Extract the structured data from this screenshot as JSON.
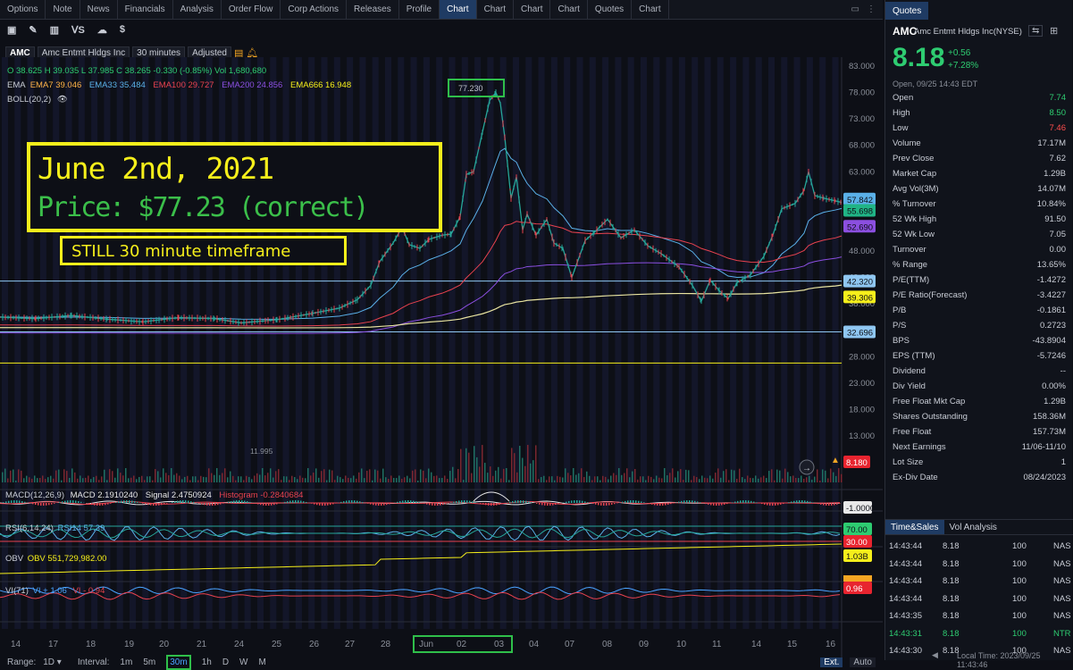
{
  "tabs": [
    "Options",
    "Note",
    "News",
    "Financials",
    "Analysis",
    "Order Flow",
    "Corp Actions",
    "Releases",
    "Profile",
    "Chart",
    "Chart",
    "Chart",
    "Chart",
    "Quotes",
    "Chart"
  ],
  "active_tab_index": 9,
  "symbol_row": {
    "symbol": "AMC",
    "name": "Amc Entmt Hldgs Inc",
    "interval": "30 minutes",
    "adjust": "Adjusted"
  },
  "ohlc": "O 38.625  H 39.035  L 37.985  C 38.265  -0.330 (-0.85%)  Vol 1,680,680",
  "ema": {
    "label": "EMA",
    "ema7": "EMA7 39.046",
    "ema33": "EMA33 35.484",
    "ema100": "EMA100 29.727",
    "ema200": "EMA200 24.856",
    "ema666": "EMA666 16.948"
  },
  "boll": "BOLL(20,2)",
  "annotation": {
    "date": "June 2nd, 2021",
    "price": "Price: $77.23 (correct)",
    "timeframe": "STILL 30 minute timeframe",
    "peak": "77.230"
  },
  "low_label": "11.995",
  "price_axis": [
    "83.000",
    "78.000",
    "73.000",
    "68.000",
    "63.000",
    "58.000",
    "53.000",
    "48.000",
    "43.000",
    "38.000",
    "33.000",
    "28.000",
    "23.000",
    "18.000",
    "13.000"
  ],
  "price_tags": [
    {
      "text": "57.842",
      "color": "#5ab0e8",
      "y": 57.842
    },
    {
      "text": "55.698",
      "color": "#20b486",
      "y": 55.698
    },
    {
      "text": "52.690",
      "color": "#8b4fe0",
      "y": 52.69
    },
    {
      "text": "42.320",
      "color": "#8fc7f2",
      "y": 42.32
    },
    {
      "text": "39.306",
      "color": "#f6ef1b",
      "y": 39.306
    },
    {
      "text": "32.696",
      "color": "#8fc7f2",
      "y": 32.696
    }
  ],
  "last_price_tag": "8.180",
  "hlines": [
    42.32,
    32.696,
    26.8
  ],
  "macd": {
    "label": "MACD(12,26,9)",
    "macd": "MACD 2.1910240",
    "signal": "Signal 2.4750924",
    "hist": "Histogram -0.2840684",
    "tag": "-1.0000"
  },
  "rsi": {
    "label": "RSI(6,14,24)",
    "rsi14": "RSI14 57.39",
    "t70": "70.00",
    "t30": "30.00"
  },
  "obv": {
    "label": "OBV",
    "value": "OBV 551,729,982.00",
    "tag": "1.03B"
  },
  "vi": {
    "label": "VI(71)",
    "plus": "VI + 1.06",
    "minus": "VI - 0.94",
    "tag": "0.96"
  },
  "x_labels": [
    "14",
    "17",
    "18",
    "19",
    "20",
    "21",
    "24",
    "25",
    "26",
    "27",
    "28",
    "Jun",
    "02",
    "03",
    "04",
    "07",
    "08",
    "09",
    "10",
    "11",
    "14",
    "15",
    "16"
  ],
  "range": {
    "label": "Range:",
    "value": "1D",
    "interval_label": "Interval:",
    "intervals": [
      "1m",
      "5m",
      "30m",
      "1h",
      "D",
      "W",
      "M"
    ],
    "selected": "30m",
    "ext": "Ext.",
    "auto": "Auto"
  },
  "quotes": {
    "tab": "Quotes",
    "symbol": "AMC",
    "name": "Amc Entmt Hldgs Inc(NYSE)",
    "price": "8.18",
    "change": "+0.56",
    "change_pct": "+7.28%",
    "time": "Open, 09/25 14:43 EDT",
    "rows": [
      {
        "k": "Open",
        "v": "7.74",
        "c": "g"
      },
      {
        "k": "High",
        "v": "8.50",
        "c": "g"
      },
      {
        "k": "Low",
        "v": "7.46",
        "c": "r"
      },
      {
        "k": "Volume",
        "v": "17.17M"
      },
      {
        "k": "Prev Close",
        "v": "7.62"
      },
      {
        "k": "Market Cap",
        "v": "1.29B"
      },
      {
        "k": "Avg Vol(3M)",
        "v": "14.07M"
      },
      {
        "k": "% Turnover",
        "v": "10.84%"
      },
      {
        "k": "52 Wk High",
        "v": "91.50"
      },
      {
        "k": "52 Wk Low",
        "v": "7.05"
      },
      {
        "k": "Turnover",
        "v": "0.00"
      },
      {
        "k": "% Range",
        "v": "13.65%"
      },
      {
        "k": "P/E(TTM)",
        "v": "-1.4272"
      },
      {
        "k": "P/E Ratio(Forecast)",
        "v": "-3.4227"
      },
      {
        "k": "P/B",
        "v": "-0.1861"
      },
      {
        "k": "P/S",
        "v": "0.2723"
      },
      {
        "k": "BPS",
        "v": "-43.8904"
      },
      {
        "k": "EPS (TTM)",
        "v": "-5.7246"
      },
      {
        "k": "Dividend",
        "v": "--"
      },
      {
        "k": "Div Yield",
        "v": "0.00%"
      },
      {
        "k": "Free Float Mkt Cap",
        "v": "1.29B"
      },
      {
        "k": "Shares Outstanding",
        "v": "158.36M"
      },
      {
        "k": "Free Float",
        "v": "157.73M"
      },
      {
        "k": "Next Earnings",
        "v": "11/06-11/10"
      },
      {
        "k": "Lot Size",
        "v": "1"
      },
      {
        "k": "Ex-Div Date",
        "v": "08/24/2023"
      }
    ]
  },
  "timesales": {
    "tabs": [
      "Time&Sales",
      "Vol Analysis"
    ],
    "rows": [
      {
        "t": "14:43:44",
        "p": "8.18",
        "q": "100",
        "x": "NAS",
        "g": false
      },
      {
        "t": "14:43:44",
        "p": "8.18",
        "q": "100",
        "x": "NAS",
        "g": false
      },
      {
        "t": "14:43:44",
        "p": "8.18",
        "q": "100",
        "x": "NAS",
        "g": false
      },
      {
        "t": "14:43:44",
        "p": "8.18",
        "q": "100",
        "x": "NAS",
        "g": false
      },
      {
        "t": "14:43:35",
        "p": "8.18",
        "q": "100",
        "x": "NAS",
        "g": false
      },
      {
        "t": "14:43:31",
        "p": "8.18",
        "q": "100",
        "x": "NTR",
        "g": true
      },
      {
        "t": "14:43:30",
        "p": "8.18",
        "q": "100",
        "x": "NAS",
        "g": false
      }
    ],
    "local_time": "Local Time: 2023/09/25 11:43:46"
  }
}
